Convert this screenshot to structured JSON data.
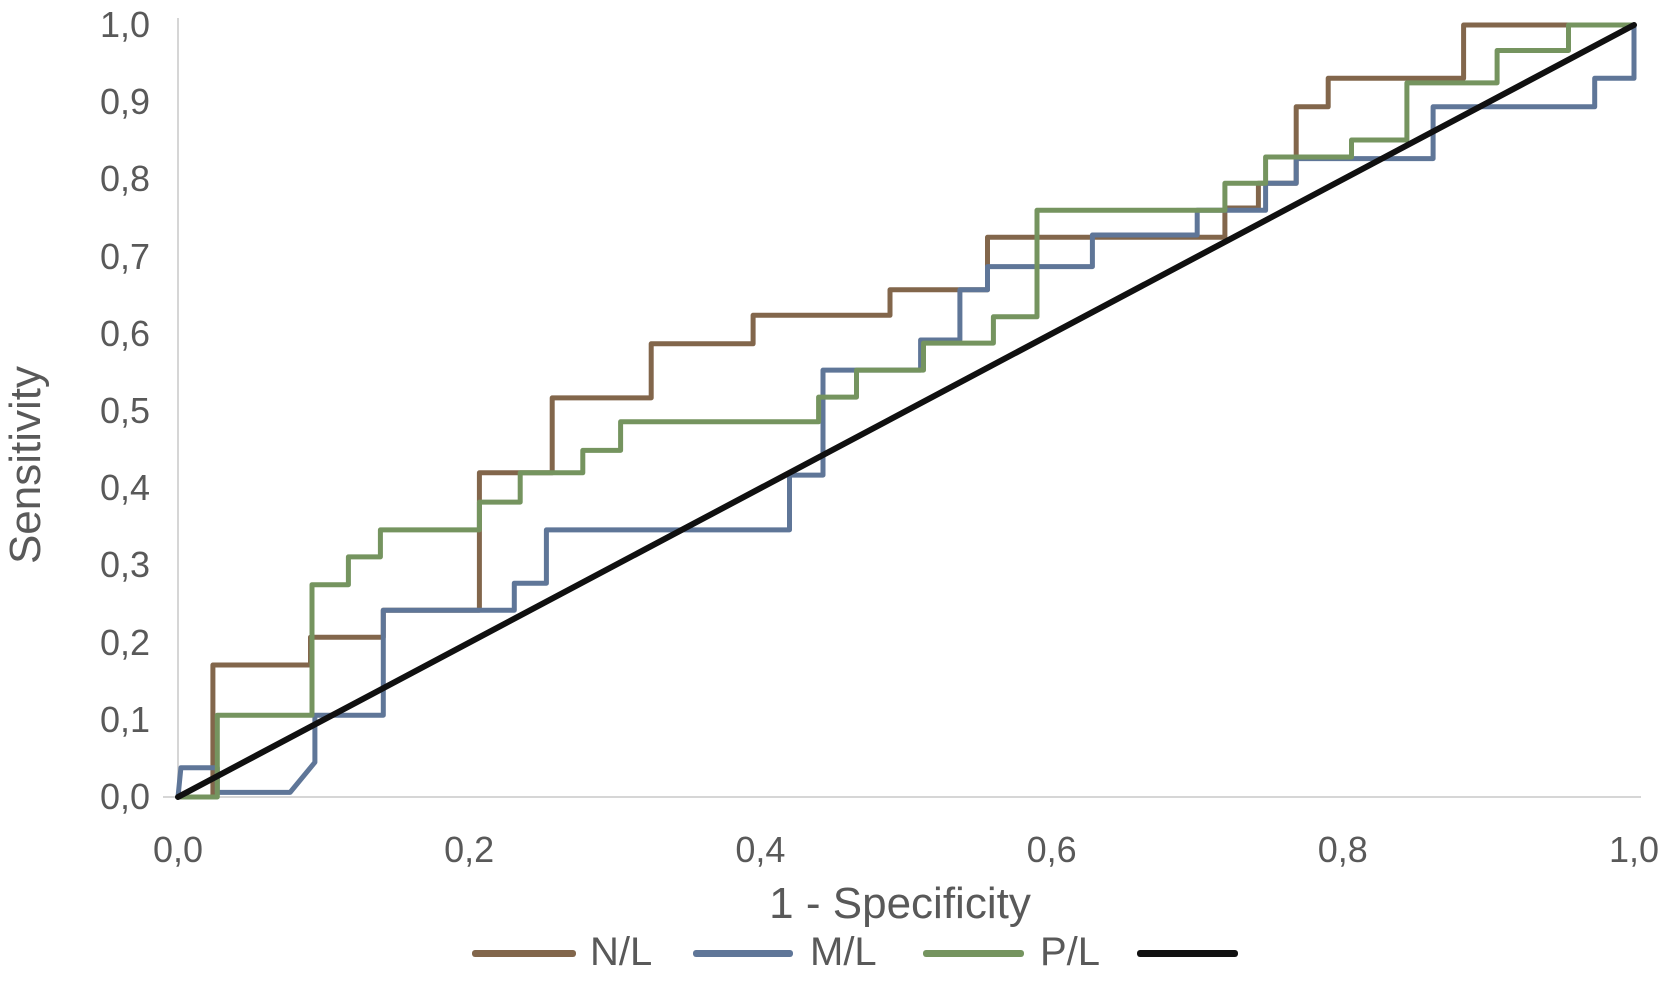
{
  "figure": {
    "background": "#ffffff",
    "text_color": "#595959",
    "axis_line_color": "#d6d6d6"
  },
  "chart_data": {
    "type": "line",
    "subtype": "roc-step-curves",
    "title": "",
    "xlabel": "1 - Specificity",
    "ylabel": "Sensitivity",
    "xlim": [
      0,
      1
    ],
    "ylim": [
      0,
      1
    ],
    "grid": false,
    "decimal_separator": ",",
    "x_ticks": [
      {
        "value": 0.0,
        "label": "0,0"
      },
      {
        "value": 0.2,
        "label": "0,2"
      },
      {
        "value": 0.4,
        "label": "0,4"
      },
      {
        "value": 0.6,
        "label": "0,6"
      },
      {
        "value": 0.8,
        "label": "0,8"
      },
      {
        "value": 1.0,
        "label": "1,0"
      }
    ],
    "y_ticks": [
      {
        "value": 0.0,
        "label": "0,0"
      },
      {
        "value": 0.1,
        "label": "0,1"
      },
      {
        "value": 0.2,
        "label": "0,2"
      },
      {
        "value": 0.3,
        "label": "0,3"
      },
      {
        "value": 0.4,
        "label": "0,4"
      },
      {
        "value": 0.5,
        "label": "0,5"
      },
      {
        "value": 0.6,
        "label": "0,6"
      },
      {
        "value": 0.7,
        "label": "0,7"
      },
      {
        "value": 0.8,
        "label": "0,8"
      },
      {
        "value": 0.9,
        "label": "0,9"
      },
      {
        "value": 1.0,
        "label": "1,0"
      }
    ],
    "legend": {
      "position": "bottom",
      "entries": [
        {
          "label": "N/L",
          "color": "#82664b"
        },
        {
          "label": "M/L",
          "color": "#5f7698"
        },
        {
          "label": "P/L",
          "color": "#75945f"
        },
        {
          "label": "",
          "color": "#111111"
        }
      ]
    },
    "series": [
      {
        "name": "N/L",
        "color": "#82664b",
        "width": 5,
        "role": "roc-curve",
        "points": [
          [
            0,
            0
          ],
          [
            0.024,
            0
          ],
          [
            0.024,
            0.171
          ],
          [
            0.091,
            0.171
          ],
          [
            0.091,
            0.207
          ],
          [
            0.141,
            0.207
          ],
          [
            0.141,
            0.242
          ],
          [
            0.207,
            0.242
          ],
          [
            0.207,
            0.42
          ],
          [
            0.257,
            0.42
          ],
          [
            0.257,
            0.517
          ],
          [
            0.325,
            0.517
          ],
          [
            0.325,
            0.587
          ],
          [
            0.395,
            0.587
          ],
          [
            0.395,
            0.624
          ],
          [
            0.489,
            0.624
          ],
          [
            0.489,
            0.657
          ],
          [
            0.556,
            0.657
          ],
          [
            0.556,
            0.725
          ],
          [
            0.719,
            0.725
          ],
          [
            0.719,
            0.763
          ],
          [
            0.742,
            0.763
          ],
          [
            0.742,
            0.795
          ],
          [
            0.768,
            0.795
          ],
          [
            0.768,
            0.894
          ],
          [
            0.79,
            0.894
          ],
          [
            0.79,
            0.931
          ],
          [
            0.883,
            0.931
          ],
          [
            0.883,
            1
          ],
          [
            1,
            1
          ]
        ]
      },
      {
        "name": "M/L",
        "color": "#5f7698",
        "width": 5,
        "role": "roc-curve",
        "points": [
          [
            0,
            0
          ],
          [
            0.002,
            0.038
          ],
          [
            0.027,
            0.038
          ],
          [
            0.027,
            0.006
          ],
          [
            0.077,
            0.006
          ],
          [
            0.094,
            0.045
          ],
          [
            0.094,
            0.106
          ],
          [
            0.141,
            0.106
          ],
          [
            0.141,
            0.242
          ],
          [
            0.231,
            0.242
          ],
          [
            0.231,
            0.277
          ],
          [
            0.253,
            0.277
          ],
          [
            0.253,
            0.346
          ],
          [
            0.42,
            0.346
          ],
          [
            0.42,
            0.417
          ],
          [
            0.443,
            0.417
          ],
          [
            0.443,
            0.553
          ],
          [
            0.51,
            0.553
          ],
          [
            0.51,
            0.592
          ],
          [
            0.537,
            0.592
          ],
          [
            0.537,
            0.657
          ],
          [
            0.556,
            0.657
          ],
          [
            0.556,
            0.687
          ],
          [
            0.628,
            0.687
          ],
          [
            0.628,
            0.728
          ],
          [
            0.7,
            0.728
          ],
          [
            0.7,
            0.76
          ],
          [
            0.747,
            0.76
          ],
          [
            0.747,
            0.795
          ],
          [
            0.768,
            0.795
          ],
          [
            0.768,
            0.827
          ],
          [
            0.862,
            0.827
          ],
          [
            0.862,
            0.894
          ],
          [
            0.973,
            0.894
          ],
          [
            0.973,
            0.931
          ],
          [
            1,
            0.931
          ],
          [
            1,
            1
          ]
        ]
      },
      {
        "name": "P/L",
        "color": "#75945f",
        "width": 5,
        "role": "roc-curve",
        "points": [
          [
            0,
            0
          ],
          [
            0.027,
            0
          ],
          [
            0.027,
            0.106
          ],
          [
            0.092,
            0.106
          ],
          [
            0.092,
            0.275
          ],
          [
            0.117,
            0.275
          ],
          [
            0.117,
            0.311
          ],
          [
            0.139,
            0.311
          ],
          [
            0.139,
            0.346
          ],
          [
            0.207,
            0.346
          ],
          [
            0.207,
            0.382
          ],
          [
            0.235,
            0.382
          ],
          [
            0.235,
            0.42
          ],
          [
            0.278,
            0.42
          ],
          [
            0.278,
            0.449
          ],
          [
            0.304,
            0.449
          ],
          [
            0.304,
            0.486
          ],
          [
            0.44,
            0.486
          ],
          [
            0.44,
            0.518
          ],
          [
            0.466,
            0.518
          ],
          [
            0.466,
            0.553
          ],
          [
            0.512,
            0.553
          ],
          [
            0.512,
            0.588
          ],
          [
            0.56,
            0.588
          ],
          [
            0.56,
            0.622
          ],
          [
            0.59,
            0.622
          ],
          [
            0.59,
            0.76
          ],
          [
            0.719,
            0.76
          ],
          [
            0.719,
            0.795
          ],
          [
            0.747,
            0.795
          ],
          [
            0.747,
            0.829
          ],
          [
            0.806,
            0.829
          ],
          [
            0.806,
            0.851
          ],
          [
            0.844,
            0.851
          ],
          [
            0.844,
            0.925
          ],
          [
            0.906,
            0.925
          ],
          [
            0.906,
            0.967
          ],
          [
            0.955,
            0.967
          ],
          [
            0.955,
            1
          ],
          [
            1,
            1
          ]
        ]
      },
      {
        "name": "",
        "color": "#101010",
        "width": 6,
        "role": "reference-diagonal",
        "points": [
          [
            0,
            0
          ],
          [
            1,
            1
          ]
        ]
      }
    ]
  }
}
